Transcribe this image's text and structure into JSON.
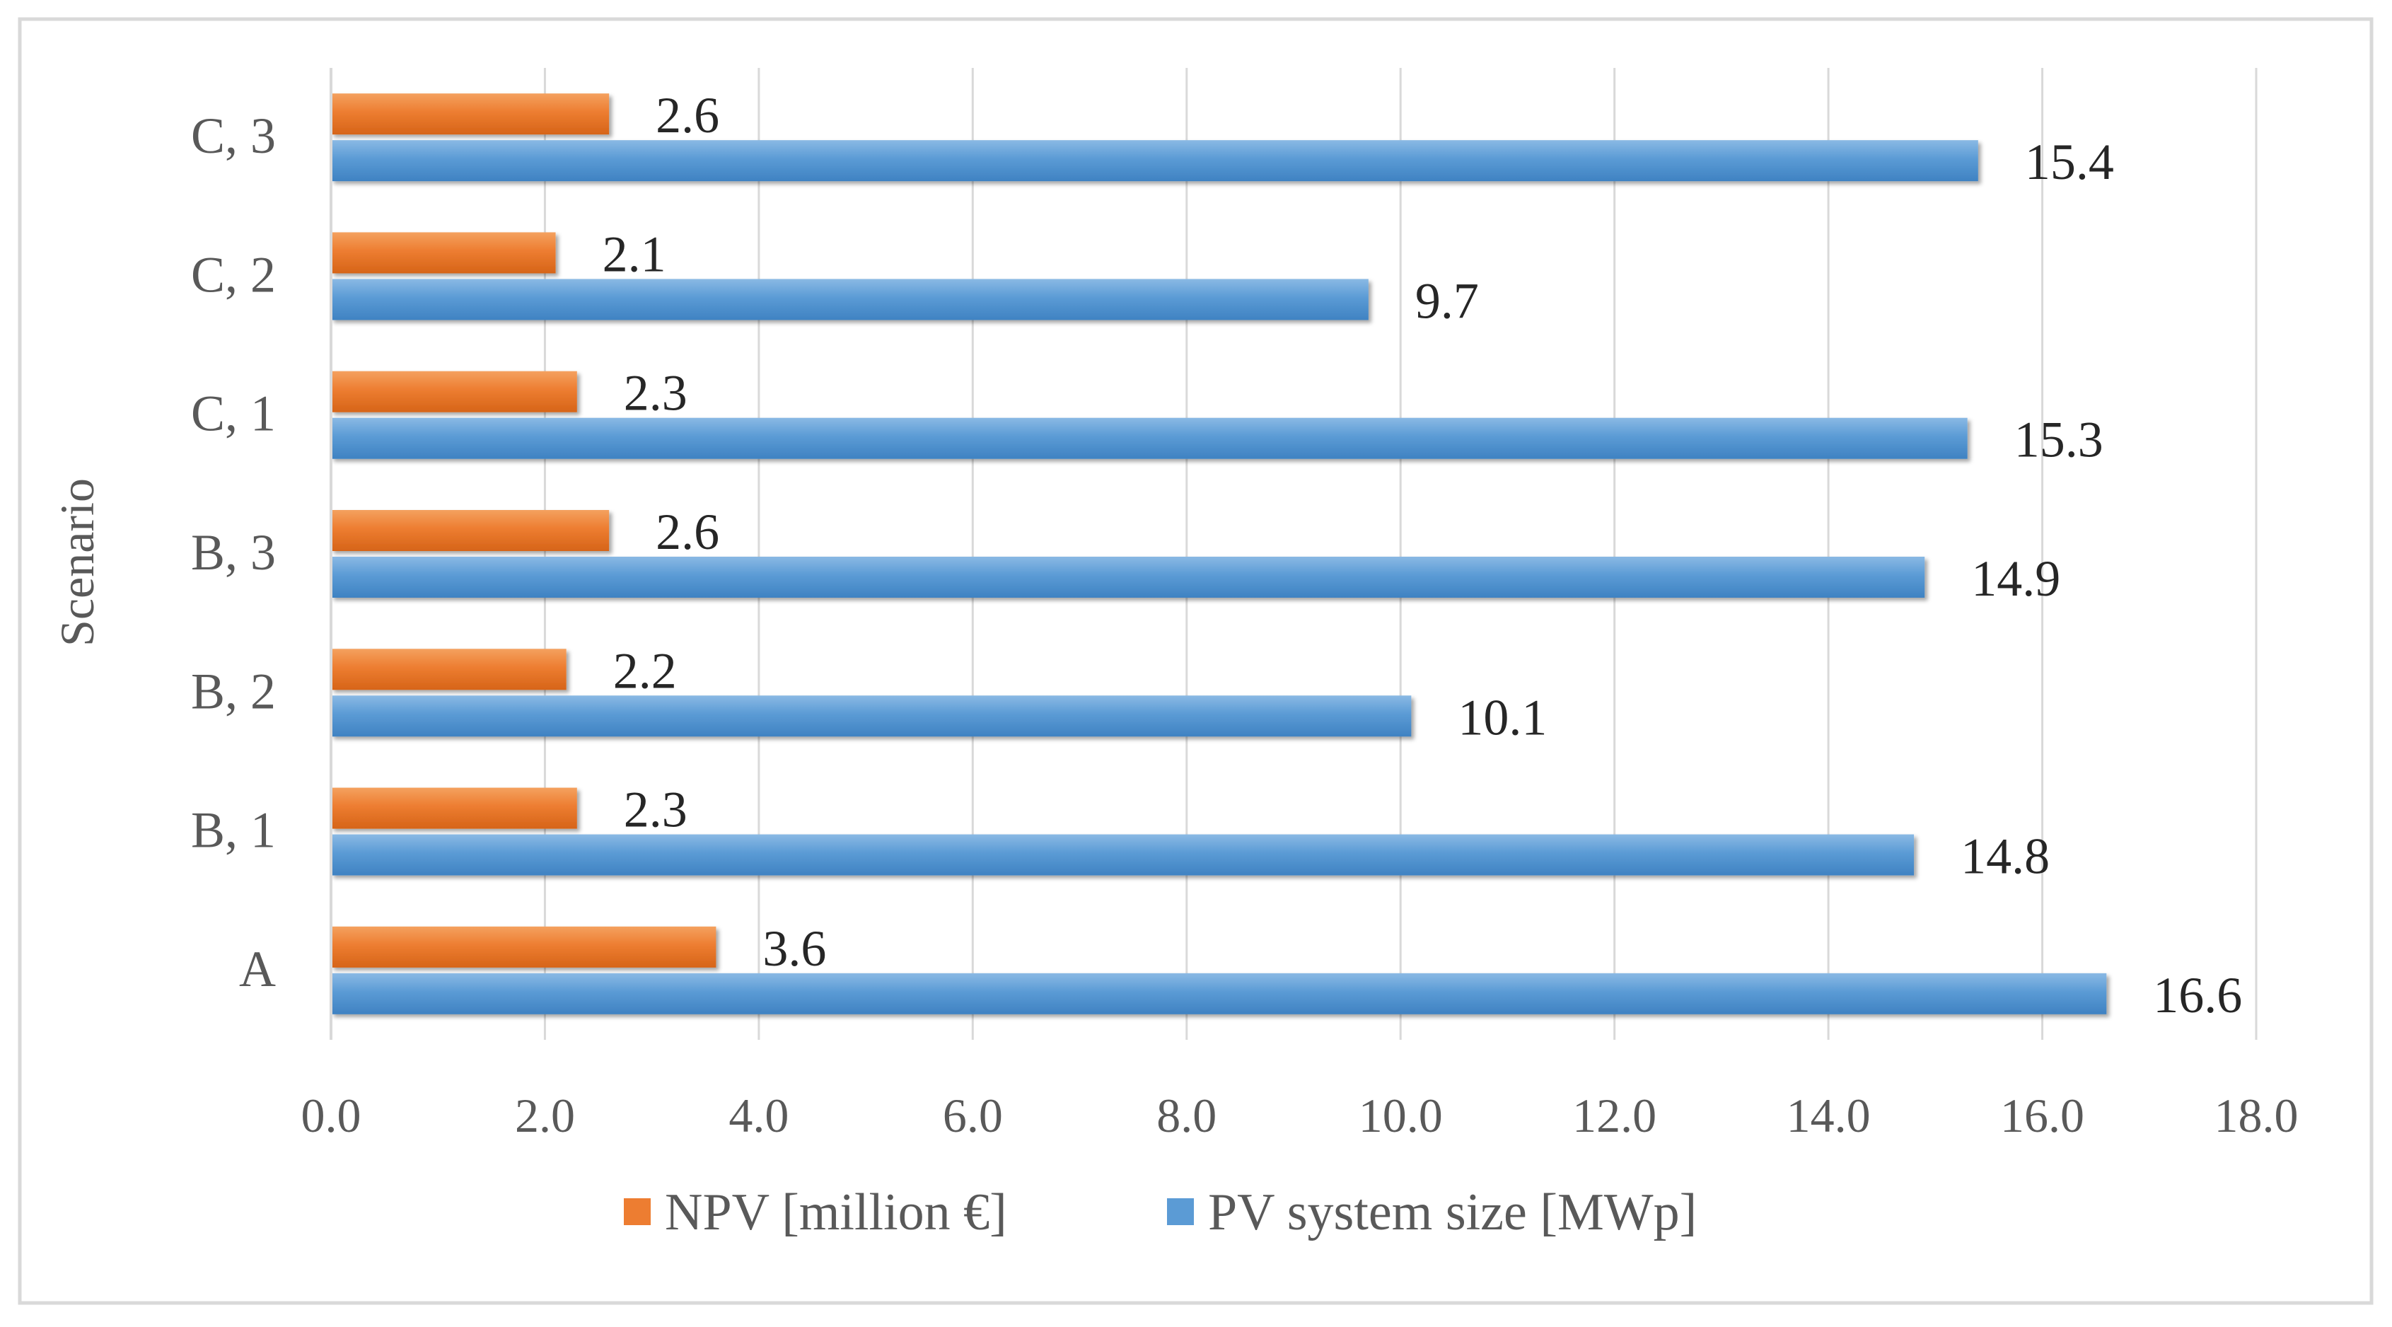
{
  "chart_data": {
    "type": "bar",
    "orientation": "horizontal",
    "title": "",
    "xlabel": "",
    "ylabel": "Scenario",
    "categories": [
      "A",
      "B, 1",
      "B, 2",
      "B, 3",
      "C, 1",
      "C, 2",
      "C, 3"
    ],
    "series": [
      {
        "name": "NPV [million €]",
        "color": "#ED7D31",
        "values": [
          3.6,
          2.3,
          2.2,
          2.6,
          2.3,
          2.1,
          2.6
        ]
      },
      {
        "name": "PV system size [MWp]",
        "color": "#5B9BD5",
        "values": [
          16.6,
          14.8,
          10.1,
          14.9,
          15.3,
          9.7,
          15.4
        ]
      }
    ],
    "xlim": [
      0,
      18
    ],
    "x_ticks": [
      "0.0",
      "2.0",
      "4.0",
      "6.0",
      "8.0",
      "10.0",
      "12.0",
      "14.0",
      "16.0",
      "18.0"
    ],
    "grid": true,
    "legend": "bottom",
    "data_labels": true
  }
}
